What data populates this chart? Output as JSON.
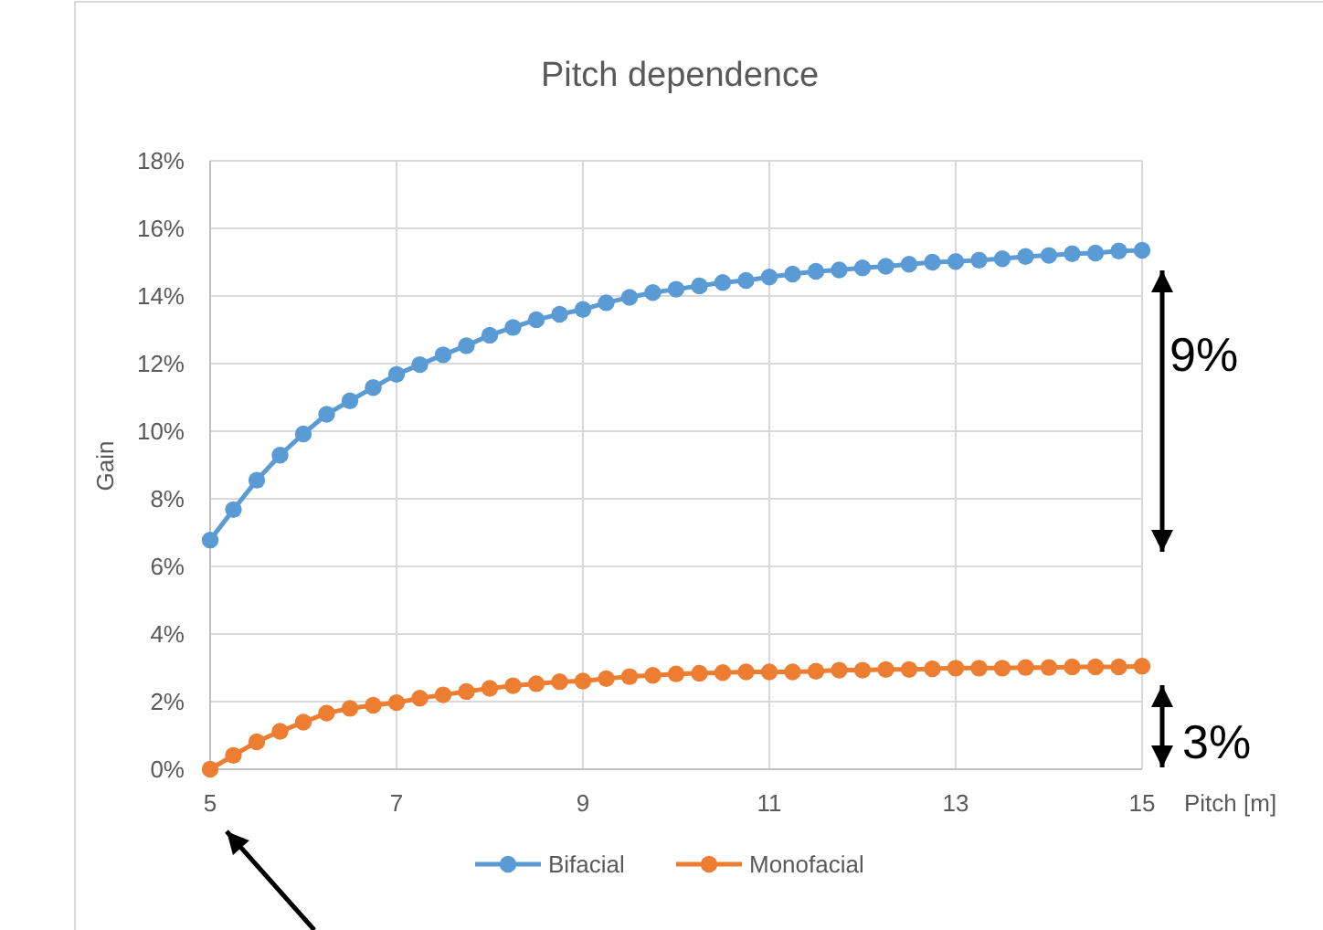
{
  "chart_data": {
    "type": "line",
    "title": "Pitch dependence",
    "xlabel": "Pitch [m]",
    "ylabel": "Gain",
    "x": [
      5,
      5.25,
      5.5,
      5.75,
      6,
      6.25,
      6.5,
      6.75,
      7,
      7.25,
      7.5,
      7.75,
      8,
      8.25,
      8.5,
      8.75,
      9,
      9.25,
      9.5,
      9.75,
      10,
      10.25,
      10.5,
      10.75,
      11,
      11.25,
      11.5,
      11.75,
      12,
      12.25,
      12.5,
      12.75,
      13,
      13.25,
      13.5,
      13.75,
      14,
      14.25,
      14.5,
      14.75,
      15
    ],
    "series": [
      {
        "name": "Bifacial",
        "color": "#5b9bd5",
        "values": [
          6.78,
          7.68,
          8.55,
          9.29,
          9.92,
          10.5,
          10.9,
          11.29,
          11.68,
          11.97,
          12.26,
          12.53,
          12.84,
          13.07,
          13.3,
          13.46,
          13.6,
          13.8,
          13.96,
          14.1,
          14.2,
          14.3,
          14.4,
          14.46,
          14.56,
          14.65,
          14.73,
          14.77,
          14.83,
          14.88,
          14.94,
          15.0,
          15.02,
          15.06,
          15.1,
          15.17,
          15.2,
          15.25,
          15.27,
          15.33,
          15.35
        ]
      },
      {
        "name": "Monofacial",
        "color": "#ed7d31",
        "values": [
          0,
          0.41,
          0.81,
          1.12,
          1.39,
          1.66,
          1.8,
          1.89,
          1.97,
          2.1,
          2.2,
          2.3,
          2.39,
          2.47,
          2.53,
          2.59,
          2.61,
          2.68,
          2.74,
          2.78,
          2.82,
          2.84,
          2.86,
          2.88,
          2.88,
          2.88,
          2.9,
          2.93,
          2.93,
          2.95,
          2.95,
          2.97,
          2.99,
          2.99,
          2.99,
          3.01,
          3.01,
          3.03,
          3.03,
          3.03,
          3.05
        ]
      }
    ],
    "xlim": [
      5,
      15
    ],
    "xticks": [
      5,
      7,
      9,
      11,
      13,
      15
    ],
    "ylim": [
      0,
      18
    ],
    "yticks": [
      {
        "value": 0,
        "label": "0%"
      },
      {
        "value": 2,
        "label": "2%"
      },
      {
        "value": 4,
        "label": "4%"
      },
      {
        "value": 6,
        "label": "6%"
      },
      {
        "value": 8,
        "label": "8%"
      },
      {
        "value": 10,
        "label": "10%"
      },
      {
        "value": 12,
        "label": "12%"
      },
      {
        "value": 14,
        "label": "14%"
      },
      {
        "value": 16,
        "label": "16%"
      },
      {
        "value": 18,
        "label": "18%"
      }
    ],
    "annotations": [
      "9%",
      "3%"
    ],
    "grid": true,
    "legend": "bottom",
    "marker": "circle",
    "line_style": "solid"
  }
}
